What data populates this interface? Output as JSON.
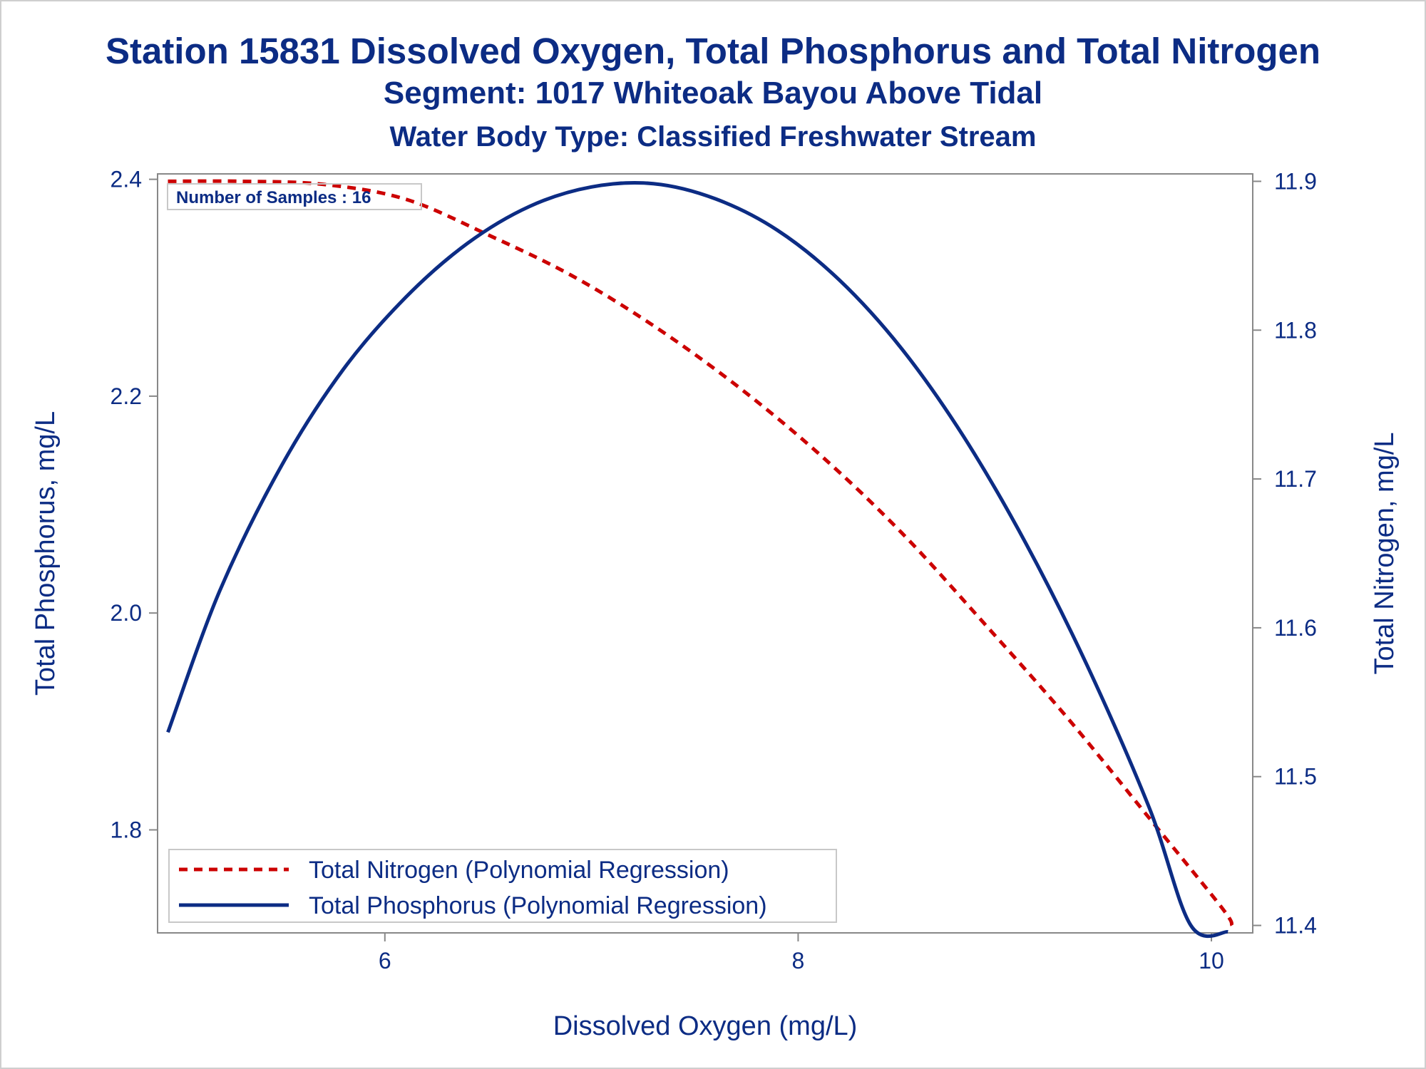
{
  "titles": {
    "main": "Station 15831  Dissolved Oxygen, Total Phosphorus and Total Nitrogen",
    "subtitle": "Segment: 1017  Whiteoak Bayou Above Tidal",
    "subtitle2": "Water Body Type: Classified Freshwater Stream"
  },
  "colors": {
    "text": "#0c2c84",
    "nitrogen": "#cc0000",
    "phosphorus": "#0c2c84",
    "axis": "#888888"
  },
  "chart_data": {
    "type": "line",
    "title": "Station 15831  Dissolved Oxygen, Total Phosphorus and Total Nitrogen",
    "xlabel": "Dissolved Oxygen (mg/L)",
    "ylabel": "Total Phosphorus, mg/L",
    "y2label": "Total Nitrogen, mg/L",
    "xlim": [
      4.9,
      10.2
    ],
    "ylim": [
      1.705,
      2.405
    ],
    "y2lim": [
      11.395,
      11.905
    ],
    "x_ticks": [
      "6",
      "8",
      "10"
    ],
    "y_ticks": [
      "1.8",
      "2.0",
      "2.2",
      "2.4"
    ],
    "y2_ticks": [
      "11.4",
      "11.5",
      "11.6",
      "11.7",
      "11.8",
      "11.9"
    ],
    "x_tick_values": [
      6,
      8,
      10
    ],
    "y_tick_values": [
      1.8,
      2.0,
      2.2,
      2.4
    ],
    "y2_tick_values": [
      11.4,
      11.5,
      11.6,
      11.7,
      11.8,
      11.9
    ],
    "grid": false,
    "legend_position": "bottom-left",
    "annotation": "Number of Samples : 16",
    "series": [
      {
        "name": "Total Nitrogen (Polynomial Regression)",
        "axis": "right",
        "style": "dashed",
        "color": "#cc0000",
        "x": [
          4.95,
          5.3,
          5.7,
          6.1,
          6.5,
          6.9,
          7.3,
          7.7,
          8.1,
          8.5,
          8.9,
          9.3,
          9.7,
          10.05,
          10.1
        ],
        "y": [
          11.9,
          11.9,
          11.898,
          11.888,
          11.864,
          11.837,
          11.803,
          11.763,
          11.717,
          11.664,
          11.603,
          11.54,
          11.472,
          11.412,
          11.4
        ]
      },
      {
        "name": "Total Phosphorus (Polynomial Regression)",
        "axis": "left",
        "style": "solid",
        "color": "#0c2c84",
        "x": [
          4.95,
          5.2,
          5.5,
          5.8,
          6.1,
          6.4,
          6.7,
          7.0,
          7.3,
          7.6,
          7.9,
          8.2,
          8.5,
          8.8,
          9.1,
          9.4,
          9.7,
          9.9,
          10.08
        ],
        "y": [
          1.89,
          2.02,
          2.136,
          2.225,
          2.291,
          2.341,
          2.375,
          2.393,
          2.396,
          2.382,
          2.353,
          2.307,
          2.244,
          2.163,
          2.065,
          1.951,
          1.82,
          1.712,
          1.706
        ]
      }
    ]
  }
}
